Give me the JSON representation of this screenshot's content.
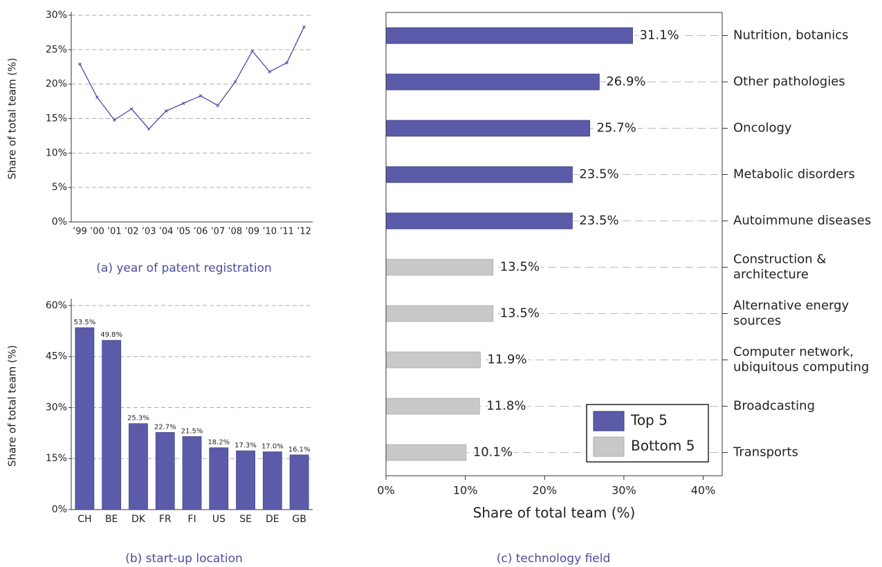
{
  "chart_data": [
    {
      "type": "line",
      "caption": "(a) year of patent registration",
      "ylabel": "Share of total team (%)",
      "categories": [
        "’99",
        "’00",
        "’01",
        "’02",
        "’03",
        "’04",
        "’05",
        "’06",
        "’07",
        "’08",
        "’09",
        "’10",
        "’11",
        "’12"
      ],
      "values": [
        22.9,
        18.1,
        14.8,
        16.4,
        13.5,
        16.1,
        17.2,
        18.3,
        16.9,
        20.3,
        24.8,
        21.8,
        23.1,
        28.3
      ],
      "color": "#3c3ca0",
      "ylim": [
        0,
        30
      ],
      "yticks": [
        {
          "value": 0,
          "label": "0%"
        },
        {
          "value": 5,
          "label": "5%"
        },
        {
          "value": 10,
          "label": "10%"
        },
        {
          "value": 15,
          "label": "15%"
        },
        {
          "value": 20,
          "label": "20%"
        },
        {
          "value": 25,
          "label": "25%"
        },
        {
          "value": 30,
          "label": "30%"
        }
      ],
      "grid": true
    },
    {
      "type": "bar",
      "caption": "(b) start-up location",
      "ylabel": "Share of total team (%)",
      "categories": [
        "CH",
        "BE",
        "DK",
        "FR",
        "FI",
        "US",
        "SE",
        "DE",
        "GB"
      ],
      "values": [
        53.5,
        49.8,
        25.3,
        22.7,
        21.5,
        18.2,
        17.3,
        17.0,
        16.1
      ],
      "value_labels": [
        "53.5%",
        "49.8%",
        "25.3%",
        "22.7%",
        "21.5%",
        "18.2%",
        "17.3%",
        "17.0%",
        "16.1%"
      ],
      "color": "#5b5baa",
      "ylim": [
        0,
        61
      ],
      "yticks": [
        {
          "value": 0,
          "label": "0%"
        },
        {
          "value": 15,
          "label": "15%"
        },
        {
          "value": 30,
          "label": "30%"
        },
        {
          "value": 45,
          "label": "45%"
        },
        {
          "value": 60,
          "label": "60%"
        }
      ],
      "grid": true
    },
    {
      "type": "barh",
      "caption": "(c) technology field",
      "xlabel": "Share of total team (%)",
      "categories": [
        "Nutrition, botanics",
        "Other pathologies",
        "Oncology",
        "Metabolic disorders",
        "Autoimmune diseases",
        "Construction &\narchitecture",
        "Alternative energy\nsources",
        "Computer network,\nubiquitous computing",
        "Broadcasting",
        "Transports"
      ],
      "series": [
        {
          "name": "Top 5",
          "color": "#5b5baa",
          "values": [
            31.1,
            26.9,
            25.7,
            23.5,
            23.5,
            null,
            null,
            null,
            null,
            null
          ],
          "value_labels": [
            "31.1%",
            "26.9%",
            "25.7%",
            "23.5%",
            "23.5%",
            null,
            null,
            null,
            null,
            null
          ]
        },
        {
          "name": "Bottom 5",
          "color": "#c8c8c8",
          "values": [
            null,
            null,
            null,
            null,
            null,
            13.5,
            13.5,
            11.9,
            11.8,
            10.1
          ],
          "value_labels": [
            null,
            null,
            null,
            null,
            null,
            "13.5%",
            "13.5%",
            "11.9%",
            "11.8%",
            "10.1%"
          ]
        }
      ],
      "xlim": [
        0,
        42.4
      ],
      "xticks": [
        {
          "value": 0,
          "label": "0%"
        },
        {
          "value": 10,
          "label": "10%"
        },
        {
          "value": 20,
          "label": "20%"
        },
        {
          "value": 30,
          "label": "30%"
        },
        {
          "value": 40,
          "label": "40%"
        }
      ],
      "grid": true,
      "legend": "lower right"
    }
  ]
}
